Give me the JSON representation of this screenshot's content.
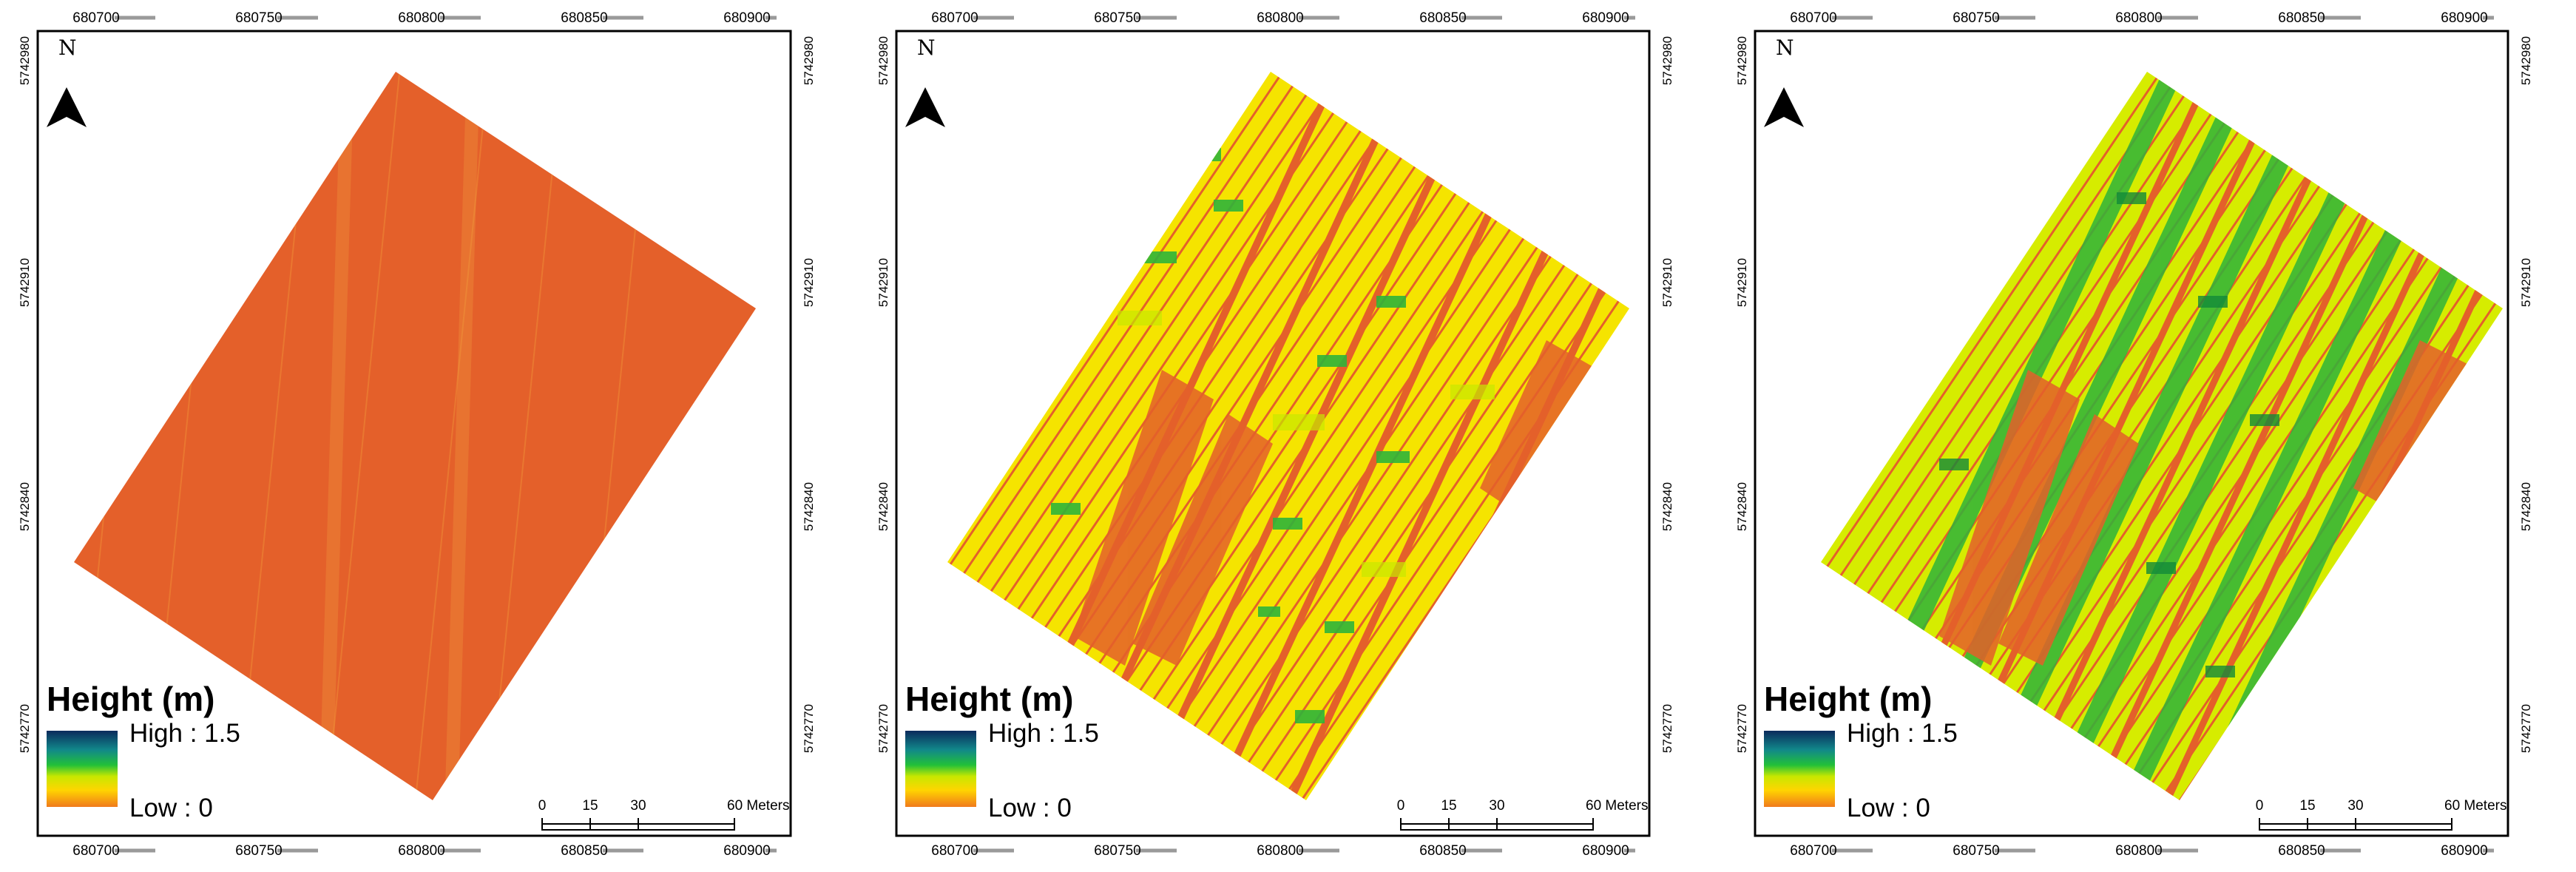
{
  "colors": {
    "ramp": [
      "#0b2a5c",
      "#11888a",
      "#22c039",
      "#c8e800",
      "#ffd500",
      "#f07a1c"
    ],
    "ortho_base": "#e4602a",
    "height_low": "#ea5a2a",
    "height_mid": "#f4e000",
    "height_high": "#2fb43a"
  },
  "panels": [
    {
      "id": "panel-1",
      "north_label": "N",
      "top_x_labels": [
        "680700",
        "680750",
        "680800",
        "680850",
        "680900"
      ],
      "bottom_x_labels": [
        "680700",
        "680750",
        "680800",
        "680850",
        "680900"
      ],
      "left_y_labels": [
        "5742980",
        "5742910",
        "5742840",
        "5742770"
      ],
      "right_y_labels": [
        "5742980",
        "5742910",
        "5742840",
        "5742770"
      ],
      "legend": {
        "title": "Height (m)",
        "high": "High : 1.5",
        "low": "Low : 0"
      },
      "scale": {
        "ticks": [
          "0",
          "15",
          "30",
          "60 Meters"
        ]
      }
    },
    {
      "id": "panel-2",
      "north_label": "N",
      "top_x_labels": [
        "680700",
        "680750",
        "680800",
        "680850",
        "680900"
      ],
      "bottom_x_labels": [
        "680700",
        "680750",
        "680800",
        "680850",
        "680900"
      ],
      "left_y_labels": [
        "5742980",
        "5742910",
        "5742840",
        "5742770"
      ],
      "right_y_labels": [
        "5742980",
        "5742910",
        "5742840",
        "5742770"
      ],
      "legend": {
        "title": "Height (m)",
        "high": "High : 1.5",
        "low": "Low : 0"
      },
      "scale": {
        "ticks": [
          "0",
          "15",
          "30",
          "60 Meters"
        ]
      }
    },
    {
      "id": "panel-3",
      "north_label": "N",
      "top_x_labels": [
        "680700",
        "680750",
        "680800",
        "680850",
        "680900"
      ],
      "bottom_x_labels": [
        "680700",
        "680750",
        "680800",
        "680850",
        "680900"
      ],
      "left_y_labels": [
        "5742980",
        "5742910",
        "5742840",
        "5742770"
      ],
      "right_y_labels": [
        "5742980",
        "5742910",
        "5742840",
        "5742770"
      ],
      "legend": {
        "title": "Height (m)",
        "high": "High : 1.5",
        "low": "Low : 0"
      },
      "scale": {
        "ticks": [
          "0",
          "15",
          "30",
          "60 Meters"
        ]
      }
    }
  ]
}
